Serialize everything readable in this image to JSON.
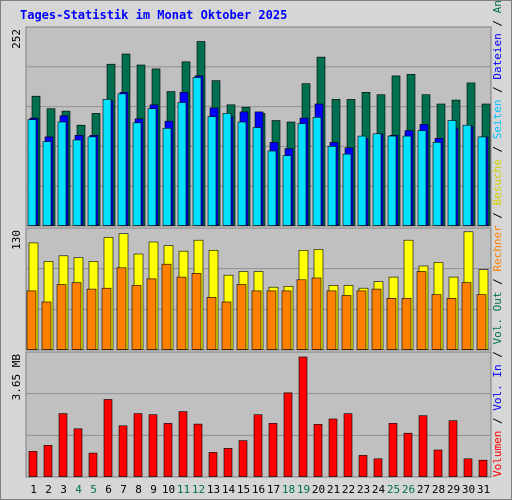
{
  "title": "Tages-Statistik im Monat Oktober 2025",
  "colors": {
    "hits": "#006f4f",
    "files": "#0000ff",
    "pages": "#00e0ff",
    "visits": "#ffff00",
    "sites": "#ff8000",
    "kbytes": "#ff0000",
    "panel_bg": "#c0c0c0",
    "weekend_day": "#006f4f",
    "weekday": "#000000"
  },
  "right_legend": {
    "panel1": [
      {
        "text": "Anfragen",
        "color": "#006f4f"
      },
      {
        "text": " / ",
        "color": "#000000"
      },
      {
        "text": "Dateien",
        "color": "#0000ff"
      },
      {
        "text": " / ",
        "color": "#000000"
      },
      {
        "text": "Seiten",
        "color": "#00c0ff"
      },
      {
        "text": " / ",
        "color": "#000000"
      },
      {
        "text": "Besuche",
        "color": "#d0d000"
      },
      {
        "text": " / ",
        "color": "#000000"
      },
      {
        "text": "Rechner",
        "color": "#ff8000"
      },
      {
        "text": " / ",
        "color": "#000000"
      },
      {
        "text": "Vol. Out",
        "color": "#006f4f"
      },
      {
        "text": " / ",
        "color": "#000000"
      },
      {
        "text": "Vol. In",
        "color": "#0000ff"
      },
      {
        "text": " / ",
        "color": "#000000"
      },
      {
        "text": "Volumen",
        "color": "#ff0000"
      }
    ]
  },
  "chart_data": [
    {
      "type": "bar",
      "ylabel_max": "252",
      "ylim": [
        0,
        252
      ],
      "grid": true,
      "categories": [
        "1",
        "2",
        "3",
        "4",
        "5",
        "6",
        "7",
        "8",
        "9",
        "10",
        "11",
        "12",
        "13",
        "14",
        "15",
        "16",
        "17",
        "18",
        "19",
        "20",
        "21",
        "22",
        "23",
        "24",
        "25",
        "26",
        "27",
        "28",
        "29",
        "30",
        "31"
      ],
      "series": [
        {
          "name": "Anfragen",
          "values": [
            166,
            150,
            147,
            129,
            144,
            207,
            220,
            206,
            201,
            172,
            210,
            236,
            186,
            155,
            152,
            144,
            135,
            133,
            182,
            216,
            162,
            162,
            171,
            168,
            192,
            194,
            168,
            156,
            161,
            183,
            156
          ]
        },
        {
          "name": "Dateien",
          "values": [
            138,
            114,
            141,
            116,
            116,
            160,
            171,
            137,
            155,
            134,
            171,
            192,
            151,
            140,
            146,
            146,
            107,
            99,
            138,
            156,
            107,
            100,
            112,
            118,
            116,
            122,
            130,
            112,
            125,
            127,
            114
          ]
        },
        {
          "name": "Seiten",
          "values": [
            136,
            108,
            133,
            110,
            114,
            162,
            169,
            132,
            150,
            125,
            158,
            190,
            140,
            144,
            133,
            126,
            96,
            90,
            131,
            139,
            102,
            92,
            115,
            118,
            115,
            115,
            122,
            107,
            135,
            129,
            114
          ]
        }
      ]
    },
    {
      "type": "bar",
      "ylabel_max": "130",
      "ylim": [
        0,
        130
      ],
      "grid": true,
      "categories": [
        "1",
        "2",
        "3",
        "4",
        "5",
        "6",
        "7",
        "8",
        "9",
        "10",
        "11",
        "12",
        "13",
        "14",
        "15",
        "16",
        "17",
        "18",
        "19",
        "20",
        "21",
        "22",
        "23",
        "24",
        "25",
        "26",
        "27",
        "28",
        "29",
        "30",
        "31"
      ],
      "series": [
        {
          "name": "Besuche",
          "values": [
            116,
            96,
            102,
            100,
            96,
            122,
            126,
            104,
            117,
            113,
            107,
            119,
            108,
            81,
            85,
            85,
            68,
            69,
            108,
            109,
            70,
            70,
            67,
            74,
            79,
            119,
            91,
            95,
            79,
            128,
            87
          ]
        },
        {
          "name": "Rechner",
          "values": [
            64,
            52,
            71,
            73,
            66,
            67,
            89,
            70,
            77,
            93,
            79,
            83,
            57,
            52,
            71,
            64,
            64,
            64,
            76,
            78,
            64,
            59,
            64,
            66,
            56,
            56,
            85,
            60,
            56,
            73,
            60
          ]
        }
      ]
    },
    {
      "type": "bar",
      "ylabel_max": "3.65 MB",
      "ylim": [
        0,
        3.65
      ],
      "grid": true,
      "categories": [
        "1",
        "2",
        "3",
        "4",
        "5",
        "6",
        "7",
        "8",
        "9",
        "10",
        "11",
        "12",
        "13",
        "14",
        "15",
        "16",
        "17",
        "18",
        "19",
        "20",
        "21",
        "22",
        "23",
        "24",
        "25",
        "26",
        "27",
        "28",
        "29",
        "30",
        "31"
      ],
      "series": [
        {
          "name": "Volumen",
          "values": [
            0.76,
            0.94,
            1.88,
            1.43,
            0.71,
            2.3,
            1.52,
            1.88,
            1.85,
            1.59,
            1.94,
            1.57,
            0.73,
            0.85,
            1.08,
            1.85,
            1.59,
            2.5,
            3.56,
            1.56,
            1.72,
            1.88,
            0.64,
            0.54,
            1.59,
            1.3,
            1.82,
            0.8,
            1.67,
            0.54,
            0.5
          ]
        }
      ]
    }
  ]
}
